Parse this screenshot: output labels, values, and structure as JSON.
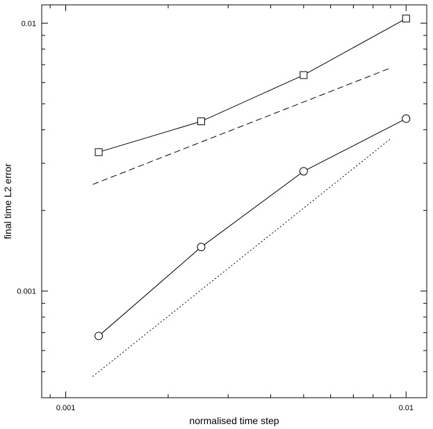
{
  "chart_data": {
    "type": "line",
    "title": "",
    "xlabel": "normalised time step",
    "ylabel": "final time L2 error",
    "x_scale": "log",
    "y_scale": "log",
    "xlim": [
      0.00085,
      0.0115
    ],
    "ylim": [
      0.0004,
      0.0117
    ],
    "grid": false,
    "x_ticks": [
      {
        "value": 0.001,
        "label": "0.001"
      },
      {
        "value": 0.01,
        "label": "0.01"
      }
    ],
    "y_ticks": [
      {
        "value": 0.001,
        "label": "0.001"
      },
      {
        "value": 0.01,
        "label": "0.01"
      }
    ],
    "series": [
      {
        "style": "solid",
        "marker": "square",
        "x": [
          0.00125,
          0.0025,
          0.005,
          0.01
        ],
        "y": [
          0.0033,
          0.0043,
          0.0064,
          0.0104
        ]
      },
      {
        "style": "dashed",
        "marker": "none",
        "x": [
          0.0012,
          0.009
        ],
        "y": [
          0.0025,
          0.0068
        ]
      },
      {
        "style": "solid",
        "marker": "circle",
        "x": [
          0.00125,
          0.0025,
          0.005,
          0.01
        ],
        "y": [
          0.00068,
          0.00146,
          0.0028,
          0.0044
        ]
      },
      {
        "style": "dotted",
        "marker": "none",
        "x": [
          0.0012,
          0.009
        ],
        "y": [
          0.00048,
          0.0037
        ]
      }
    ]
  }
}
